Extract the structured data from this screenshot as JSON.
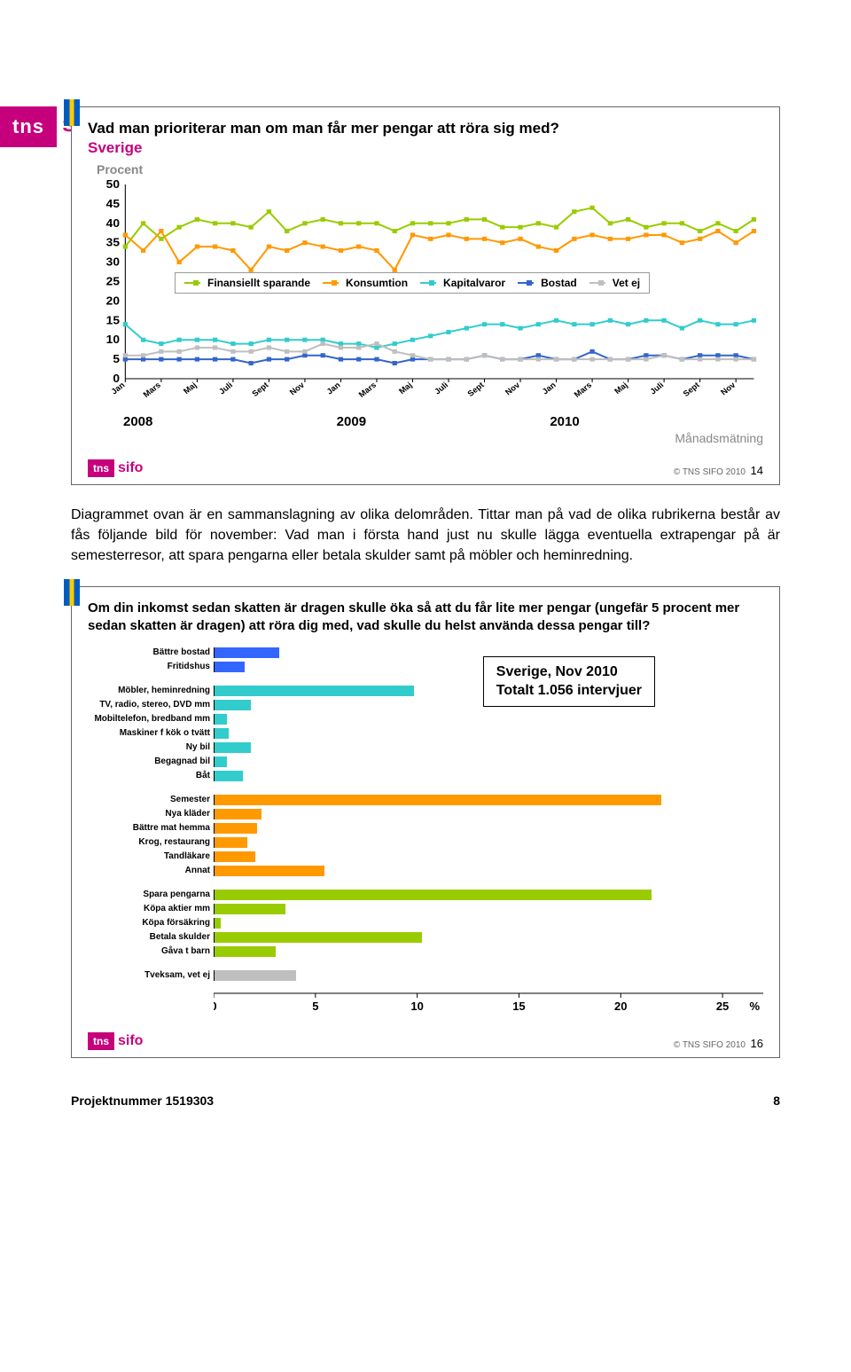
{
  "header": {
    "brand_tns": "tns",
    "brand_sifo": "sifo"
  },
  "chart1": {
    "type": "line",
    "title": "Vad man prioriterar man om man får mer pengar att röra sig med?",
    "subtitle": "Sverige",
    "procent_label": "Procent",
    "ylim": [
      0,
      50
    ],
    "ytick_step": 5,
    "yticks": [
      0,
      5,
      10,
      15,
      20,
      25,
      30,
      35,
      40,
      45,
      50
    ],
    "years": [
      "2008",
      "2009",
      "2010"
    ],
    "months_per_year": [
      "Jan",
      "Mars",
      "Maj",
      "Juli",
      "Sept",
      "Nov"
    ],
    "monthly_label": "Månadsmätning",
    "background_color": "#ffffff",
    "grid_color": "#e6e6e6",
    "axis_fontsize": 11,
    "series": [
      {
        "name": "Finansiellt sparande",
        "label": "Finansiellt sparande",
        "color": "#99cc00",
        "marker": "circle",
        "values": [
          34,
          40,
          36,
          39,
          41,
          40,
          40,
          39,
          43,
          38,
          40,
          41,
          40,
          40,
          40,
          38,
          40,
          40,
          40,
          41,
          41,
          39,
          39,
          40,
          39,
          43,
          44,
          40,
          41,
          39,
          40,
          40,
          38,
          40,
          38,
          41
        ]
      },
      {
        "name": "Konsumtion",
        "label": "Konsumtion",
        "color": "#ff9900",
        "marker": "square",
        "values": [
          37,
          33,
          38,
          30,
          34,
          34,
          33,
          28,
          34,
          33,
          35,
          34,
          33,
          34,
          33,
          28,
          37,
          36,
          37,
          36,
          36,
          35,
          36,
          34,
          33,
          36,
          37,
          36,
          36,
          37,
          37,
          35,
          36,
          38,
          35,
          38
        ]
      },
      {
        "name": "Kapitalvaror",
        "label": "Kapitalvaror",
        "color": "#33cccc",
        "marker": "triangle",
        "values": [
          14,
          10,
          9,
          10,
          10,
          10,
          9,
          9,
          10,
          10,
          10,
          10,
          9,
          9,
          8,
          9,
          10,
          11,
          12,
          13,
          14,
          14,
          13,
          14,
          15,
          14,
          14,
          15,
          14,
          15,
          15,
          13,
          15,
          14,
          14,
          15
        ]
      },
      {
        "name": "Bostad",
        "label": "Bostad",
        "color": "#3366cc",
        "marker": "triangle",
        "values": [
          5,
          5,
          5,
          5,
          5,
          5,
          5,
          4,
          5,
          5,
          6,
          6,
          5,
          5,
          5,
          4,
          5,
          5,
          5,
          5,
          6,
          5,
          5,
          6,
          5,
          5,
          7,
          5,
          5,
          6,
          6,
          5,
          6,
          6,
          6,
          5
        ]
      },
      {
        "name": "Vet ej",
        "label": "Vet ej",
        "color": "#bfbfbf",
        "marker": "diamond",
        "values": [
          6,
          6,
          7,
          7,
          8,
          8,
          7,
          7,
          8,
          7,
          7,
          9,
          8,
          8,
          9,
          7,
          6,
          5,
          5,
          5,
          6,
          5,
          5,
          5,
          5,
          5,
          5,
          5,
          5,
          5,
          6,
          5,
          5,
          5,
          5,
          5
        ]
      }
    ],
    "copyright": "© TNS SIFO 2010",
    "page_num": "14"
  },
  "paragraph": "Diagrammet ovan är en sammanslagning av olika delområden. Tittar man på vad de olika rubrikerna består av fås följande bild för november: Vad man i första hand just nu skulle lägga eventuella extrapengar på är semesterresor, att spara pengarna eller betala skulder samt på möbler och heminredning.",
  "chart2": {
    "type": "bar",
    "question": "Om din inkomst sedan skatten är dragen skulle öka så att du får lite mer pengar (ungefär 5 procent mer sedan skatten är dragen) att röra dig med, vad skulle du helst använda dessa pengar till?",
    "info_box_line1": "Sverige, Nov 2010",
    "info_box_line2": "Totalt 1.056 intervjuer",
    "xlim": [
      0,
      27
    ],
    "xtick_step": 5,
    "xticks": [
      0,
      5,
      10,
      15,
      20,
      25
    ],
    "xunit": "%",
    "axis_fontsize": 13,
    "groups": [
      {
        "color": "#3366ff",
        "items": [
          {
            "label": "Bättre bostad",
            "value": 3.2
          },
          {
            "label": "Fritidshus",
            "value": 1.5
          }
        ]
      },
      {
        "color": "#33cccc",
        "items": [
          {
            "label": "Möbler, heminredning",
            "value": 9.8
          },
          {
            "label": "TV, radio, stereo, DVD mm",
            "value": 1.8
          },
          {
            "label": "Mobiltelefon, bredband mm",
            "value": 0.6
          },
          {
            "label": "Maskiner f kök o tvätt",
            "value": 0.7
          },
          {
            "label": "Ny bil",
            "value": 1.8
          },
          {
            "label": "Begagnad bil",
            "value": 0.6
          },
          {
            "label": "Båt",
            "value": 1.4
          }
        ]
      },
      {
        "color": "#ff9900",
        "items": [
          {
            "label": "Semester",
            "value": 22
          },
          {
            "label": "Nya kläder",
            "value": 2.3
          },
          {
            "label": "Bättre mat hemma",
            "value": 2.1
          },
          {
            "label": "Krog, restaurang",
            "value": 1.6
          },
          {
            "label": "Tandläkare",
            "value": 2.0
          },
          {
            "label": "Annat",
            "value": 5.4
          }
        ]
      },
      {
        "color": "#99cc00",
        "items": [
          {
            "label": "Spara pengarna",
            "value": 21.5
          },
          {
            "label": "Köpa aktier mm",
            "value": 3.5
          },
          {
            "label": "Köpa försäkring",
            "value": 0.3
          },
          {
            "label": "Betala skulder",
            "value": 10.2
          },
          {
            "label": "Gåva t barn",
            "value": 3.0
          }
        ]
      },
      {
        "color": "#bfbfbf",
        "items": [
          {
            "label": "Tveksam, vet ej",
            "value": 4.0
          }
        ]
      }
    ],
    "copyright": "© TNS SIFO 2010",
    "page_num": "16"
  },
  "footer": {
    "project": "Projektnummer 1519303",
    "pagenum": "8"
  }
}
